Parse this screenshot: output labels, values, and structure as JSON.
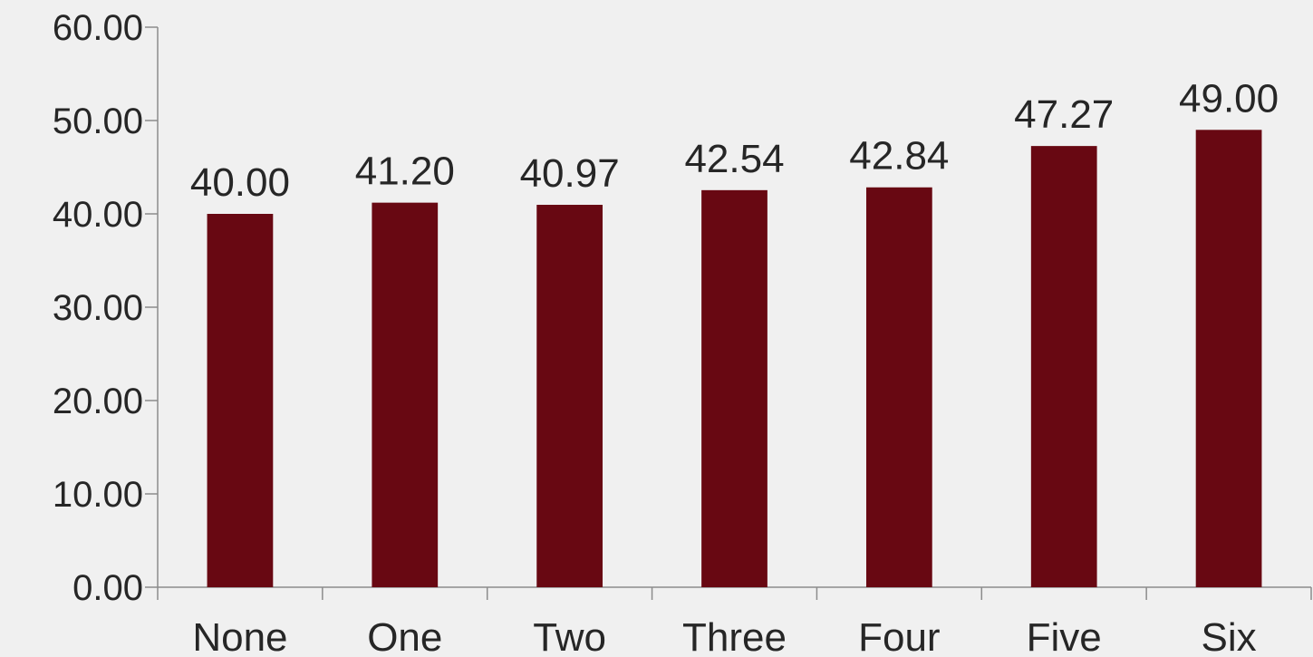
{
  "chart_data": {
    "type": "bar",
    "categories": [
      "None",
      "One",
      "Two",
      "Three",
      "Four",
      "Five",
      "Six"
    ],
    "values": [
      40.0,
      41.2,
      40.97,
      42.54,
      42.84,
      47.27,
      49.0
    ],
    "value_labels": [
      "40.00",
      "41.20",
      "40.97",
      "42.54",
      "42.84",
      "47.27",
      "49.00"
    ],
    "ylim": [
      0,
      60
    ],
    "yticks": [
      0,
      10,
      20,
      30,
      40,
      50,
      60
    ],
    "ytick_labels": [
      "0.00",
      "10.00",
      "20.00",
      "30.00",
      "40.00",
      "50.00",
      "60.00"
    ],
    "title": "",
    "xlabel": "",
    "ylabel": "",
    "grid": false,
    "legend": "none",
    "colors": {
      "bar": "#680812",
      "background": "#f0f0f0",
      "axis": "#8c8c8c",
      "text": "#262626"
    }
  }
}
